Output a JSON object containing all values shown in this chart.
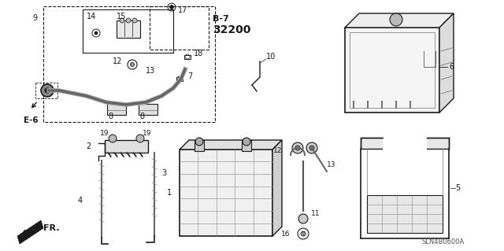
{
  "bg_color": "#ffffff",
  "part_number_ref": "SLN4B0600A",
  "dark": "#1a1a1a",
  "gray": "#888888",
  "light_gray": "#cccccc",
  "fs_label": 7,
  "fs_b7": 8,
  "fs_b7_num": 10,
  "fs_ref": 6.5,
  "fs_fr": 8
}
